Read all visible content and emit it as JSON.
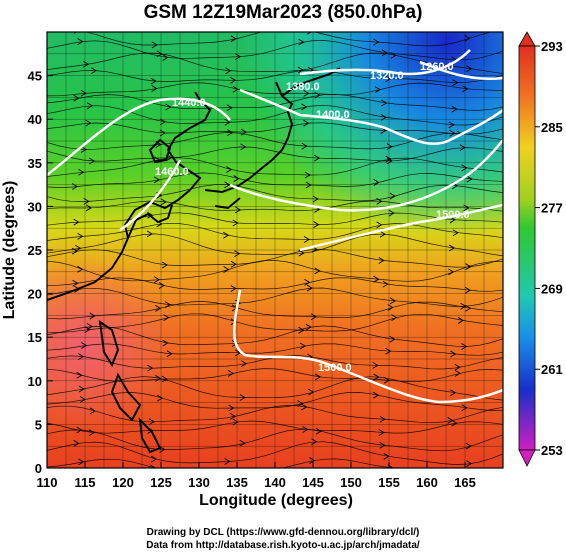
{
  "title": "GSM 12Z19Mar2023 (850.0hPa)",
  "x_axis": {
    "label": "Longitude (degrees)",
    "range": [
      110,
      170
    ],
    "ticks": [
      "110",
      "115",
      "120",
      "125",
      "130",
      "135",
      "140",
      "145",
      "150",
      "155",
      "160",
      "165"
    ]
  },
  "y_axis": {
    "label": "Latitude  (degrees)",
    "range": [
      0,
      50
    ],
    "ticks": [
      "0",
      "5",
      "10",
      "15",
      "20",
      "25",
      "30",
      "35",
      "40",
      "45"
    ]
  },
  "colorbar": {
    "labels": [
      "293",
      "285",
      "277",
      "269",
      "261",
      "253"
    ],
    "range": [
      253,
      293
    ],
    "colors": [
      "#d020c0",
      "#2020d0",
      "#10a8e8",
      "#30d090",
      "#30d030",
      "#e8e020",
      "#f08020",
      "#e83020"
    ]
  },
  "contour_labels": [
    "1260.0",
    "1320.0",
    "1380.0",
    "1400.0",
    "1440.0",
    "1460.0",
    "1500.0",
    "1500.0"
  ],
  "credits": [
    "Drawing by DCL (https://www.gfd-dennou.org/library/dcl/)",
    "Data from http://database.rish.kyoto-u.ac.jp/arch/jmadata/"
  ]
}
